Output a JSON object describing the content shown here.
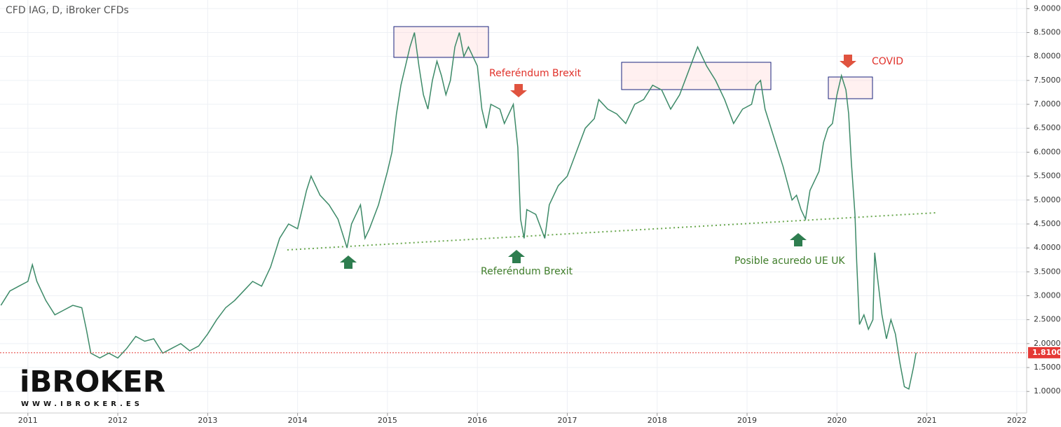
{
  "chart_data": {
    "type": "line",
    "title": "CFD IAG, D, iBroker CFDs",
    "x": [
      2010.7,
      2010.8,
      2010.9,
      2011.0,
      2011.05,
      2011.1,
      2011.2,
      2011.3,
      2011.4,
      2011.5,
      2011.6,
      2011.65,
      2011.7,
      2011.8,
      2011.9,
      2012.0,
      2012.1,
      2012.2,
      2012.3,
      2012.4,
      2012.5,
      2012.6,
      2012.7,
      2012.8,
      2012.9,
      2013.0,
      2013.1,
      2013.2,
      2013.3,
      2013.4,
      2013.5,
      2013.6,
      2013.7,
      2013.8,
      2013.9,
      2014.0,
      2014.1,
      2014.15,
      2014.25,
      2014.35,
      2014.45,
      2014.55,
      2014.6,
      2014.7,
      2014.75,
      2014.8,
      2014.9,
      2015.0,
      2015.05,
      2015.1,
      2015.15,
      2015.2,
      2015.25,
      2015.3,
      2015.35,
      2015.4,
      2015.45,
      2015.5,
      2015.55,
      2015.6,
      2015.65,
      2015.7,
      2015.75,
      2015.8,
      2015.85,
      2015.9,
      2016.0,
      2016.05,
      2016.1,
      2016.15,
      2016.25,
      2016.3,
      2016.4,
      2016.45,
      2016.48,
      2016.52,
      2016.55,
      2016.65,
      2016.75,
      2016.8,
      2016.9,
      2017.0,
      2017.1,
      2017.2,
      2017.3,
      2017.35,
      2017.45,
      2017.55,
      2017.65,
      2017.75,
      2017.85,
      2017.95,
      2018.05,
      2018.15,
      2018.25,
      2018.35,
      2018.45,
      2018.55,
      2018.65,
      2018.75,
      2018.85,
      2018.95,
      2019.05,
      2019.1,
      2019.15,
      2019.2,
      2019.3,
      2019.4,
      2019.5,
      2019.55,
      2019.6,
      2019.65,
      2019.7,
      2019.8,
      2019.85,
      2019.9,
      2019.95,
      2020.0,
      2020.05,
      2020.1,
      2020.13,
      2020.16,
      2020.2,
      2020.22,
      2020.25,
      2020.3,
      2020.35,
      2020.4,
      2020.42,
      2020.45,
      2020.5,
      2020.55,
      2020.6,
      2020.65,
      2020.7,
      2020.75,
      2020.8,
      2020.85,
      2020.88
    ],
    "values": [
      2.8,
      3.1,
      3.2,
      3.3,
      3.65,
      3.3,
      2.9,
      2.6,
      2.7,
      2.8,
      2.75,
      2.3,
      1.8,
      1.7,
      1.8,
      1.7,
      1.9,
      2.15,
      2.05,
      2.1,
      1.8,
      1.9,
      2.0,
      1.85,
      1.95,
      2.2,
      2.5,
      2.75,
      2.9,
      3.1,
      3.3,
      3.2,
      3.6,
      4.2,
      4.5,
      4.4,
      5.2,
      5.5,
      5.1,
      4.9,
      4.6,
      4.0,
      4.5,
      4.9,
      4.2,
      4.4,
      4.9,
      5.6,
      6.0,
      6.8,
      7.4,
      7.8,
      8.2,
      8.5,
      7.8,
      7.2,
      6.9,
      7.5,
      7.9,
      7.6,
      7.2,
      7.5,
      8.2,
      8.5,
      8.0,
      8.2,
      7.8,
      6.9,
      6.5,
      7.0,
      6.9,
      6.6,
      7.0,
      6.1,
      4.6,
      4.2,
      4.8,
      4.7,
      4.2,
      4.9,
      5.3,
      5.5,
      6.0,
      6.5,
      6.7,
      7.1,
      6.9,
      6.8,
      6.6,
      7.0,
      7.1,
      7.4,
      7.3,
      6.9,
      7.2,
      7.7,
      8.2,
      7.8,
      7.5,
      7.1,
      6.6,
      6.9,
      7.0,
      7.4,
      7.5,
      6.9,
      6.3,
      5.7,
      5.0,
      5.1,
      4.8,
      4.6,
      5.2,
      5.6,
      6.2,
      6.5,
      6.6,
      7.2,
      7.6,
      7.3,
      6.8,
      5.8,
      4.7,
      3.7,
      2.4,
      2.6,
      2.3,
      2.5,
      3.9,
      3.4,
      2.6,
      2.1,
      2.5,
      2.2,
      1.6,
      1.1,
      1.05,
      1.5,
      1.81
    ],
    "color": "#3d8a68",
    "xlim": [
      2010.69,
      2022.11
    ],
    "xticks": [
      2011,
      2012,
      2013,
      2014,
      2015,
      2016,
      2017,
      2018,
      2019,
      2020,
      2021,
      2022
    ],
    "ylim": [
      0.55,
      9.18
    ],
    "yticks": [
      {
        "value": 1,
        "label": "1.0000"
      },
      {
        "value": 1.5,
        "label": "1.5000"
      },
      {
        "value": 2,
        "label": "2.0000"
      },
      {
        "value": 2.5,
        "label": "2.5000"
      },
      {
        "value": 3,
        "label": "3.0000"
      },
      {
        "value": 3.5,
        "label": "3.5000"
      },
      {
        "value": 4,
        "label": "4.0000"
      },
      {
        "value": 4.5,
        "label": "4.5000"
      },
      {
        "value": 5,
        "label": "5.0000"
      },
      {
        "value": 5.5,
        "label": "5.5000"
      },
      {
        "value": 6,
        "label": "6.0000"
      },
      {
        "value": 6.5,
        "label": "6.5000"
      },
      {
        "value": 7,
        "label": "7.0000"
      },
      {
        "value": 7.5,
        "label": "7.5000"
      },
      {
        "value": 8,
        "label": "8.0000"
      },
      {
        "value": 8.5,
        "label": "8.5000"
      },
      {
        "value": 9,
        "label": "9.0000"
      }
    ],
    "grid": true,
    "last_price": {
      "value": 1.81,
      "label": "1.8100"
    },
    "annotations": [
      "Referéndum Brexit",
      "COVID",
      "Referéndum Brexit",
      "Posible acuredo UE UK"
    ],
    "watermark": {
      "brand": "iBROKER",
      "url": "WWW.IBROKER.ES"
    }
  }
}
